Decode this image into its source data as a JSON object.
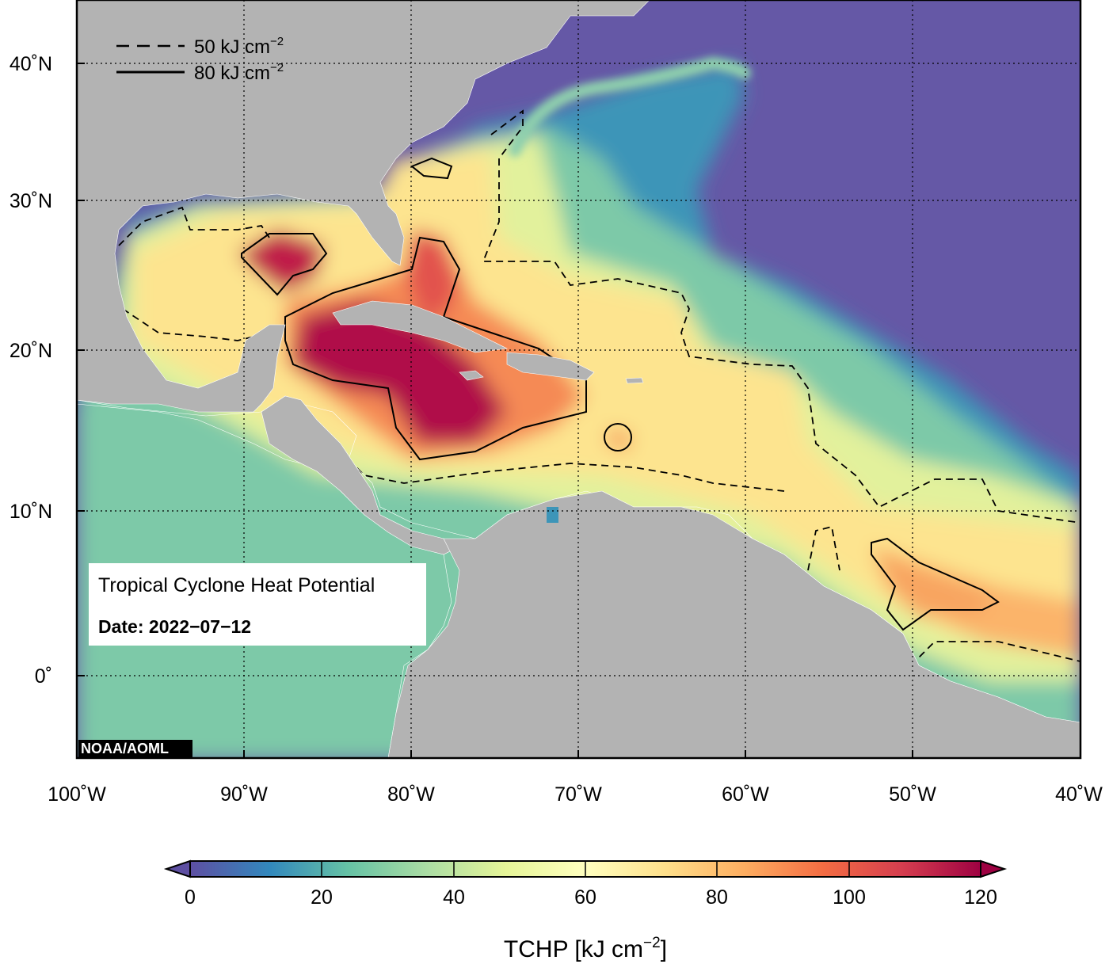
{
  "legend": {
    "items": [
      {
        "value": "50",
        "unit": "kJ cm",
        "exp": "−2",
        "style": "dashed"
      },
      {
        "value": "80",
        "unit": "kJ cm",
        "exp": "−2",
        "style": "solid"
      }
    ]
  },
  "info": {
    "title": "Tropical Cyclone Heat Potential",
    "date": "Date: 2022−07−12"
  },
  "credit": "NOAA/AOML",
  "map": {
    "lon_range": [
      -100,
      -40
    ],
    "lat_range": [
      -5,
      44
    ],
    "lon_ticks": [
      "100˚W",
      "90˚W",
      "80˚W",
      "70˚W",
      "60˚W",
      "50˚W",
      "40˚W"
    ],
    "lat_ticks": [
      "40˚N",
      "30˚N",
      "20˚N",
      "10˚N",
      "0˚"
    ],
    "ocean_low_color": "#6558a6",
    "land_color": "#b3b3b3"
  },
  "colorbar": {
    "ticks": [
      "0",
      "20",
      "40",
      "60",
      "80",
      "100",
      "120"
    ],
    "range": [
      0,
      120
    ],
    "colors": [
      "#5e4fa2",
      "#3288bd",
      "#66c2a5",
      "#abdda4",
      "#e6f598",
      "#ffffbf",
      "#fee08b",
      "#fdae61",
      "#f46d43",
      "#d53e4f",
      "#9e0142"
    ],
    "label": "TCHP [kJ cm",
    "label_exp": "−2",
    "label_close": "]"
  }
}
